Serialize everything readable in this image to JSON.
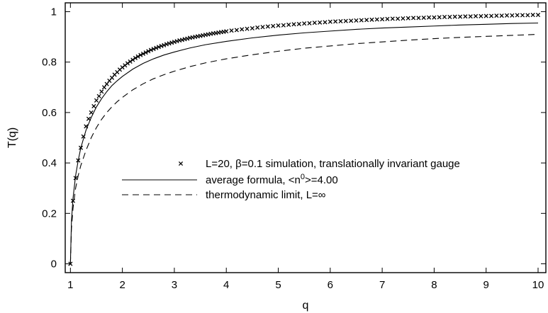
{
  "chart_data": {
    "type": "scatter",
    "xlabel": "q",
    "ylabel": "T(q)",
    "xlim": [
      0.9,
      10.15
    ],
    "ylim": [
      -0.035,
      1.035
    ],
    "xticks": [
      {
        "value": 1,
        "label": "1"
      },
      {
        "value": 2,
        "label": "2"
      },
      {
        "value": 3,
        "label": "3"
      },
      {
        "value": 4,
        "label": "4"
      },
      {
        "value": 5,
        "label": "5"
      },
      {
        "value": 6,
        "label": "6"
      },
      {
        "value": 7,
        "label": "7"
      },
      {
        "value": 8,
        "label": "8"
      },
      {
        "value": 9,
        "label": "9"
      },
      {
        "value": 10,
        "label": "10"
      }
    ],
    "yticks": [
      {
        "value": 0,
        "label": "0"
      },
      {
        "value": 0.2,
        "label": "0.2"
      },
      {
        "value": 0.4,
        "label": "0.4"
      },
      {
        "value": 0.6,
        "label": "0.6"
      },
      {
        "value": 0.8,
        "label": "0.8"
      },
      {
        "value": 1,
        "label": "1"
      }
    ],
    "legend_position": "center-right",
    "series": [
      {
        "name": "L=20, β=0.1 simulation, translationally invariant gauge",
        "style": "markers-x",
        "color": "#000000",
        "x": [
          1.0,
          1.05,
          1.1,
          1.15,
          1.2,
          1.25,
          1.3,
          1.35,
          1.4,
          1.45,
          1.5,
          1.55,
          1.6,
          1.65,
          1.7,
          1.75,
          1.8,
          1.85,
          1.9,
          1.95,
          2.0,
          2.05,
          2.1,
          2.15,
          2.2,
          2.25,
          2.3,
          2.35,
          2.4,
          2.45,
          2.5,
          2.55,
          2.6,
          2.65,
          2.7,
          2.75,
          2.8,
          2.85,
          2.9,
          2.95,
          3.0,
          3.05,
          3.1,
          3.15,
          3.2,
          3.25,
          3.3,
          3.35,
          3.4,
          3.45,
          3.5,
          3.55,
          3.6,
          3.65,
          3.7,
          3.75,
          3.8,
          3.85,
          3.9,
          3.95,
          4.0,
          4.1,
          4.2,
          4.3,
          4.4,
          4.5,
          4.6,
          4.7,
          4.8,
          4.9,
          5.0,
          5.1,
          5.2,
          5.3,
          5.4,
          5.5,
          5.6,
          5.7,
          5.8,
          5.9,
          6.0,
          6.1,
          6.2,
          6.3,
          6.4,
          6.5,
          6.6,
          6.7,
          6.8,
          6.9,
          7.0,
          7.1,
          7.2,
          7.3,
          7.4,
          7.5,
          7.6,
          7.7,
          7.8,
          7.9,
          8.0,
          8.1,
          8.2,
          8.3,
          8.4,
          8.5,
          8.6,
          8.7,
          8.8,
          8.9,
          9.0,
          9.1,
          9.2,
          9.3,
          9.4,
          9.5,
          9.6,
          9.7,
          9.8,
          9.9,
          10.0
        ],
        "y": [
          0.0,
          0.25,
          0.34,
          0.41,
          0.46,
          0.505,
          0.545,
          0.575,
          0.6,
          0.625,
          0.648,
          0.665,
          0.683,
          0.7,
          0.713,
          0.726,
          0.738,
          0.75,
          0.76,
          0.77,
          0.779,
          0.787,
          0.795,
          0.802,
          0.809,
          0.816,
          0.822,
          0.828,
          0.833,
          0.838,
          0.843,
          0.848,
          0.852,
          0.856,
          0.86,
          0.864,
          0.867,
          0.871,
          0.874,
          0.877,
          0.88,
          0.883,
          0.886,
          0.888,
          0.891,
          0.893,
          0.896,
          0.898,
          0.9,
          0.902,
          0.904,
          0.906,
          0.908,
          0.91,
          0.912,
          0.914,
          0.915,
          0.917,
          0.919,
          0.92,
          0.922,
          0.925,
          0.927,
          0.93,
          0.932,
          0.934,
          0.937,
          0.939,
          0.941,
          0.943,
          0.945,
          0.946,
          0.948,
          0.95,
          0.951,
          0.953,
          0.954,
          0.956,
          0.957,
          0.958,
          0.96,
          0.961,
          0.962,
          0.963,
          0.964,
          0.965,
          0.966,
          0.967,
          0.968,
          0.969,
          0.97,
          0.971,
          0.972,
          0.972,
          0.973,
          0.974,
          0.975,
          0.975,
          0.976,
          0.977,
          0.977,
          0.978,
          0.979,
          0.979,
          0.98,
          0.98,
          0.981,
          0.981,
          0.982,
          0.982,
          0.983,
          0.983,
          0.984,
          0.984,
          0.985,
          0.985,
          0.986,
          0.986,
          0.986,
          0.987,
          0.987
        ]
      },
      {
        "name": "average formula, <n⁰>=4.00",
        "legend_label_main": "average formula, <n",
        "legend_label_sup": "0",
        "legend_label_tail": ">=4.00",
        "style": "solid",
        "color": "#000000",
        "x": [
          1.0,
          1.02,
          1.05,
          1.1,
          1.15,
          1.2,
          1.3,
          1.4,
          1.5,
          1.6,
          1.7,
          1.8,
          1.9,
          2.0,
          2.2,
          2.4,
          2.6,
          2.8,
          3.0,
          3.3,
          3.6,
          4.0,
          4.5,
          5.0,
          5.5,
          6.0,
          6.5,
          7.0,
          7.5,
          8.0,
          8.5,
          9.0,
          9.5,
          10.0
        ],
        "y": [
          0.0,
          0.17,
          0.26,
          0.35,
          0.41,
          0.46,
          0.53,
          0.58,
          0.622,
          0.655,
          0.683,
          0.707,
          0.726,
          0.743,
          0.772,
          0.795,
          0.813,
          0.828,
          0.84,
          0.856,
          0.869,
          0.882,
          0.896,
          0.907,
          0.916,
          0.923,
          0.93,
          0.935,
          0.939,
          0.943,
          0.947,
          0.95,
          0.953,
          0.955
        ]
      },
      {
        "name": "thermodynamic limit, L=∞",
        "style": "dashed",
        "color": "#000000",
        "x": [
          1.0,
          1.02,
          1.05,
          1.1,
          1.15,
          1.2,
          1.3,
          1.4,
          1.5,
          1.6,
          1.7,
          1.8,
          1.9,
          2.0,
          2.2,
          2.4,
          2.6,
          2.8,
          3.0,
          3.3,
          3.6,
          4.0,
          4.5,
          5.0,
          5.5,
          6.0,
          6.5,
          7.0,
          7.5,
          8.0,
          8.5,
          9.0,
          9.5,
          10.0
        ],
        "y": [
          0.0,
          0.14,
          0.22,
          0.3,
          0.35,
          0.39,
          0.45,
          0.5,
          0.54,
          0.573,
          0.6,
          0.623,
          0.643,
          0.66,
          0.69,
          0.714,
          0.734,
          0.75,
          0.764,
          0.782,
          0.797,
          0.813,
          0.829,
          0.843,
          0.855,
          0.864,
          0.873,
          0.88,
          0.887,
          0.893,
          0.898,
          0.902,
          0.906,
          0.91
        ]
      }
    ]
  }
}
